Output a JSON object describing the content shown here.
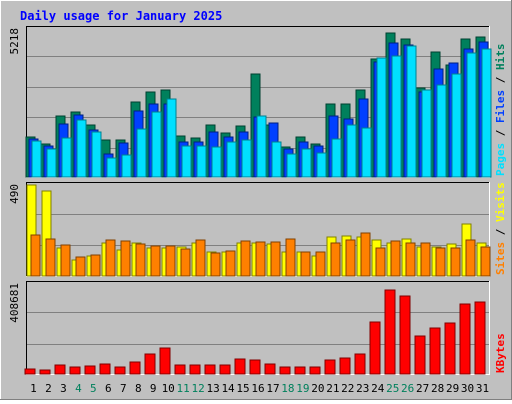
{
  "colors": {
    "hits": "#00805C",
    "files": "#0040FF",
    "pages": "#00E0FF",
    "visits": "#FFFF00",
    "sites": "#FF8000",
    "kbytes": "#FF0000",
    "weekend": "#00805C",
    "weekday": "#000000",
    "title": "#0000FF",
    "background": "#C0C0C0"
  },
  "chart_data": {
    "type": "bar",
    "title": "Daily usage for January 2025",
    "days": [
      "1",
      "2",
      "3",
      "4",
      "5",
      "6",
      "7",
      "8",
      "9",
      "10",
      "11",
      "12",
      "13",
      "14",
      "15",
      "16",
      "17",
      "18",
      "19",
      "20",
      "21",
      "22",
      "23",
      "24",
      "25",
      "26",
      "27",
      "28",
      "29",
      "30",
      "31"
    ],
    "weekend_days": [
      "4",
      "5",
      "11",
      "12",
      "18",
      "19",
      "25",
      "26"
    ],
    "panels": [
      {
        "name": "hits-files-pages",
        "ymax": 5218,
        "ymax_label": "5218",
        "legend": [
          {
            "key": "pages",
            "text": "Pages"
          },
          {
            "key": "slash1",
            "text": " / "
          },
          {
            "key": "files",
            "text": "Files"
          },
          {
            "key": "slash2",
            "text": " / "
          },
          {
            "key": "hits",
            "text": "Hits"
          }
        ],
        "series": [
          {
            "name": "Hits",
            "color_key": "hits",
            "values": [
              1420,
              1150,
              2150,
              2280,
              1830,
              1300,
              1300,
              2650,
              3000,
              3050,
              1450,
              1380,
              1820,
              1560,
              1800,
              3640,
              1820,
              1070,
              1420,
              1170,
              2560,
              2570,
              3050,
              4160,
              5080,
              4860,
              3130,
              4400,
              3960,
              4870,
              4940
            ]
          },
          {
            "name": "Files",
            "color_key": "files",
            "values": [
              1330,
              1080,
              1870,
              2200,
              1670,
              800,
              1200,
              2330,
              2560,
              2560,
              1250,
              1250,
              1600,
              1420,
              1600,
              2100,
              1920,
              1000,
              1250,
              1080,
              2150,
              2060,
              2760,
              4060,
              4730,
              4650,
              3000,
              3800,
              4020,
              4530,
              4750
            ]
          },
          {
            "name": "Pages",
            "color_key": "pages",
            "values": [
              1260,
              1000,
              1360,
              2020,
              1570,
              660,
              780,
              1680,
              2300,
              2760,
              1080,
              1110,
              1060,
              1230,
              1300,
              2140,
              1250,
              820,
              1000,
              850,
              1350,
              1850,
              1720,
              4200,
              4280,
              4620,
              3070,
              3250,
              3640,
              4380,
              4530
            ]
          }
        ]
      },
      {
        "name": "visits-sites",
        "ymax": 490,
        "ymax_label": "490",
        "legend": [
          {
            "key": "sites",
            "text": "Sites"
          },
          {
            "key": "slash",
            "text": " / "
          },
          {
            "key": "visits",
            "text": "Visits"
          }
        ],
        "series": [
          {
            "name": "Visits",
            "color_key": "visits",
            "values": [
              490,
              460,
              150,
              85,
              110,
              180,
              140,
              180,
              150,
              150,
              155,
              175,
              130,
              130,
              175,
              180,
              170,
              130,
              130,
              105,
              210,
              215,
              210,
              195,
              180,
              200,
              155,
              155,
              170,
              280,
              180
            ]
          },
          {
            "name": "Sites",
            "color_key": "sites",
            "values": [
              220,
              200,
              165,
              100,
              115,
              195,
              190,
              170,
              160,
              160,
              145,
              195,
              125,
              135,
              190,
              185,
              185,
              200,
              130,
              130,
              180,
              195,
              230,
              150,
              190,
              180,
              180,
              150,
              150,
              195,
              155
            ]
          }
        ]
      },
      {
        "name": "kbytes",
        "ymax": 408681,
        "ymax_label": "408681",
        "legend": [
          {
            "key": "kbytes",
            "text": "KBytes"
          }
        ],
        "series": [
          {
            "name": "KBytes",
            "color_key": "kbytes",
            "values": [
              24000,
              18500,
              40000,
              31000,
              35000,
              45000,
              33000,
              54000,
              91000,
              116000,
              43000,
              42000,
              43000,
              43000,
              68000,
              63000,
              45000,
              30000,
              33000,
              31000,
              62000,
              72000,
              90000,
              238000,
              382000,
              353000,
              171000,
              208000,
              233000,
              320000,
              325000
            ]
          }
        ]
      }
    ]
  }
}
